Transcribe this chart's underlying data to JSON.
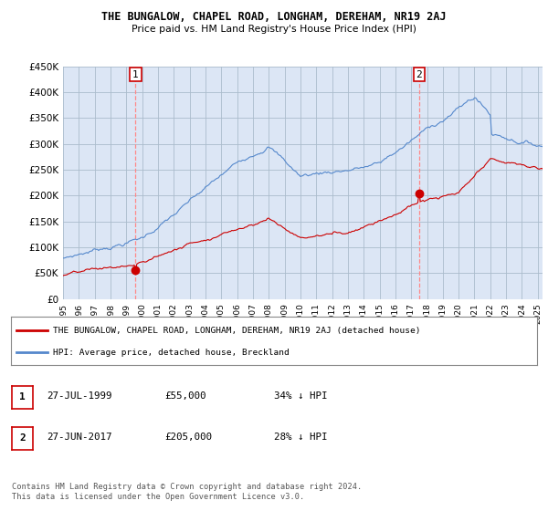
{
  "title": "THE BUNGALOW, CHAPEL ROAD, LONGHAM, DEREHAM, NR19 2AJ",
  "subtitle": "Price paid vs. HM Land Registry's House Price Index (HPI)",
  "background_color": "#ffffff",
  "plot_bg_color": "#dce6f5",
  "grid_color": "#aabbcc",
  "hpi_color": "#5588cc",
  "price_color": "#cc0000",
  "annotation_color": "#cc0000",
  "vline_color": "#ff8888",
  "sale1": {
    "date_num": 1999.58,
    "price": 55000,
    "label": "1"
  },
  "sale2": {
    "date_num": 2017.5,
    "price": 205000,
    "label": "2"
  },
  "legend_entry1": "THE BUNGALOW, CHAPEL ROAD, LONGHAM, DEREHAM, NR19 2AJ (detached house)",
  "legend_entry2": "HPI: Average price, detached house, Breckland",
  "table_row1": [
    "1",
    "27-JUL-1999",
    "£55,000",
    "34% ↓ HPI"
  ],
  "table_row2": [
    "2",
    "27-JUN-2017",
    "£205,000",
    "28% ↓ HPI"
  ],
  "footer": "Contains HM Land Registry data © Crown copyright and database right 2024.\nThis data is licensed under the Open Government Licence v3.0.",
  "ylim": [
    0,
    450000
  ],
  "xlim_start": 1995.0,
  "xlim_end": 2025.3,
  "yticks": [
    0,
    50000,
    100000,
    150000,
    200000,
    250000,
    300000,
    350000,
    400000,
    450000
  ],
  "xticks": [
    1995,
    1996,
    1997,
    1998,
    1999,
    2000,
    2001,
    2002,
    2003,
    2004,
    2005,
    2006,
    2007,
    2008,
    2009,
    2010,
    2011,
    2012,
    2013,
    2014,
    2015,
    2016,
    2017,
    2018,
    2019,
    2020,
    2021,
    2022,
    2023,
    2024,
    2025
  ]
}
